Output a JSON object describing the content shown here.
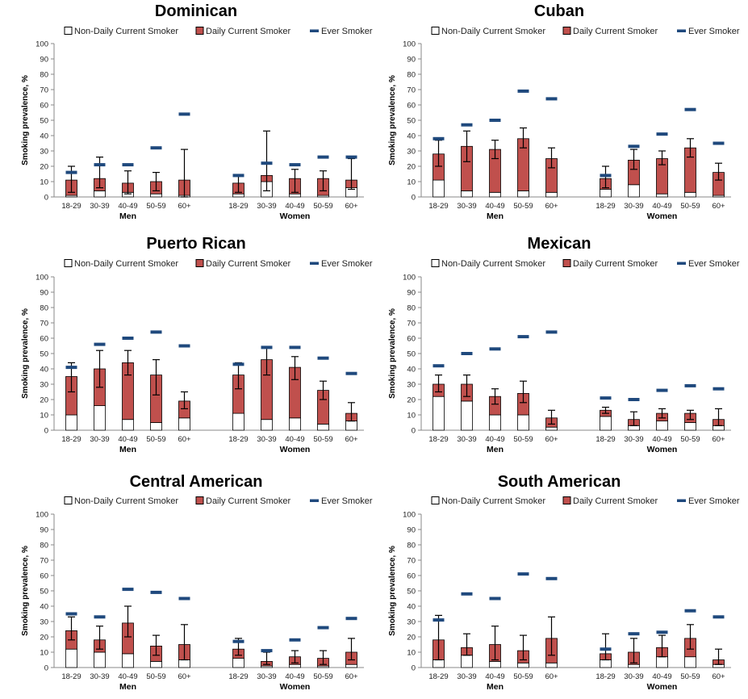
{
  "colors": {
    "daily": "#C0504D",
    "non_daily": "#FFFFFF",
    "ever": "#1F497D",
    "outline": "#000000"
  },
  "legend": {
    "non_daily": "Non-Daily Current Smoker",
    "daily": "Daily Current Smoker",
    "ever": "Ever Smoker"
  },
  "ylabel": "Smoking prevalence, %",
  "yticks": [
    "0",
    "10",
    "20",
    "30",
    "40",
    "50",
    "60",
    "70",
    "80",
    "90",
    "100"
  ],
  "chart_data": [
    {
      "title": "Dominican",
      "type": "bar",
      "stacked": true,
      "ylim": [
        0,
        100
      ],
      "groups": [
        {
          "label": "Men",
          "categories": [
            "18-29",
            "30-39",
            "40-49",
            "50-59",
            "60+"
          ],
          "non_daily": [
            1,
            4,
            3,
            2,
            1
          ],
          "daily": [
            10,
            8,
            6,
            8,
            10
          ],
          "error_upper": [
            20,
            26,
            17,
            16,
            31
          ],
          "error_lower": [
            3,
            6,
            2,
            4,
            0
          ],
          "ever": [
            16,
            21,
            21,
            32,
            54
          ]
        },
        {
          "label": "Women",
          "categories": [
            "18-29",
            "30-39",
            "40-49",
            "50-59",
            "60+"
          ],
          "non_daily": [
            2,
            10,
            2,
            1,
            6
          ],
          "daily": [
            7,
            4,
            10,
            11,
            5
          ],
          "error_upper": [
            14,
            43,
            18,
            17,
            25
          ],
          "error_lower": [
            3,
            4,
            3,
            4,
            5
          ],
          "ever": [
            14,
            22,
            21,
            26,
            26
          ]
        }
      ]
    },
    {
      "title": "Cuban",
      "type": "bar",
      "stacked": true,
      "ylim": [
        0,
        100
      ],
      "groups": [
        {
          "label": "Men",
          "categories": [
            "18-29",
            "30-39",
            "40-49",
            "50-59",
            "60+"
          ],
          "non_daily": [
            11,
            4,
            3,
            4,
            3
          ],
          "daily": [
            17,
            29,
            28,
            34,
            22
          ],
          "error_upper": [
            37,
            43,
            37,
            45,
            32
          ],
          "error_lower": [
            20,
            23,
            25,
            32,
            19
          ],
          "ever": [
            38,
            47,
            50,
            69,
            64
          ]
        },
        {
          "label": "Women",
          "categories": [
            "18-29",
            "30-39",
            "40-49",
            "50-59",
            "60+"
          ],
          "non_daily": [
            5,
            8,
            2,
            3,
            1
          ],
          "daily": [
            7,
            16,
            23,
            29,
            15
          ],
          "error_upper": [
            20,
            31,
            30,
            38,
            22
          ],
          "error_lower": [
            6,
            18,
            21,
            26,
            11
          ],
          "ever": [
            14,
            33,
            41,
            57,
            35
          ]
        }
      ]
    },
    {
      "title": "Puerto Rican",
      "type": "bar",
      "stacked": true,
      "ylim": [
        0,
        100
      ],
      "groups": [
        {
          "label": "Men",
          "categories": [
            "18-29",
            "30-39",
            "40-49",
            "50-59",
            "60+"
          ],
          "non_daily": [
            10,
            16,
            7,
            5,
            8
          ],
          "daily": [
            25,
            24,
            37,
            31,
            11
          ],
          "error_upper": [
            44,
            52,
            52,
            46,
            25
          ],
          "error_lower": [
            25,
            28,
            36,
            23,
            14
          ],
          "ever": [
            41,
            56,
            60,
            64,
            55
          ]
        },
        {
          "label": "Women",
          "categories": [
            "18-29",
            "30-39",
            "40-49",
            "50-59",
            "60+"
          ],
          "non_daily": [
            11,
            7,
            8,
            4,
            6
          ],
          "daily": [
            25,
            39,
            33,
            22,
            5
          ],
          "error_upper": [
            44,
            54,
            48,
            32,
            18
          ],
          "error_lower": [
            27,
            36,
            33,
            20,
            6
          ],
          "ever": [
            43,
            54,
            54,
            47,
            37
          ]
        }
      ]
    },
    {
      "title": "Mexican",
      "type": "bar",
      "stacked": true,
      "ylim": [
        0,
        100
      ],
      "groups": [
        {
          "label": "Men",
          "categories": [
            "18-29",
            "30-39",
            "40-49",
            "50-59",
            "60+"
          ],
          "non_daily": [
            22,
            19,
            10,
            10,
            2
          ],
          "daily": [
            8,
            11,
            12,
            14,
            6
          ],
          "error_upper": [
            36,
            36,
            27,
            32,
            13
          ],
          "error_lower": [
            25,
            22,
            17,
            18,
            4
          ],
          "ever": [
            42,
            50,
            53,
            61,
            64
          ]
        },
        {
          "label": "Women",
          "categories": [
            "18-29",
            "30-39",
            "40-49",
            "50-59",
            "60+"
          ],
          "non_daily": [
            9,
            3,
            6,
            5,
            3
          ],
          "daily": [
            4,
            4,
            5,
            6,
            4
          ],
          "error_upper": [
            15,
            12,
            14,
            13,
            14
          ],
          "error_lower": [
            11,
            3,
            8,
            7,
            3
          ],
          "ever": [
            21,
            20,
            26,
            29,
            27
          ]
        }
      ]
    },
    {
      "title": "Central American",
      "type": "bar",
      "stacked": true,
      "ylim": [
        0,
        100
      ],
      "groups": [
        {
          "label": "Men",
          "categories": [
            "18-29",
            "30-39",
            "40-49",
            "50-59",
            "60+"
          ],
          "non_daily": [
            12,
            10,
            9,
            4,
            5
          ],
          "daily": [
            12,
            8,
            20,
            10,
            10
          ],
          "error_upper": [
            33,
            27,
            40,
            21,
            28
          ],
          "error_lower": [
            18,
            12,
            20,
            8,
            5
          ],
          "ever": [
            35,
            33,
            51,
            49,
            45
          ]
        },
        {
          "label": "Women",
          "categories": [
            "18-29",
            "30-39",
            "40-49",
            "50-59",
            "60+"
          ],
          "non_daily": [
            6,
            1,
            2,
            1,
            2
          ],
          "daily": [
            6,
            3,
            5,
            5,
            8
          ],
          "error_upper": [
            19,
            10,
            11,
            11,
            19
          ],
          "error_lower": [
            8,
            2,
            3,
            2,
            5
          ],
          "ever": [
            17,
            11,
            18,
            26,
            32
          ]
        }
      ]
    },
    {
      "title": "South American",
      "type": "bar",
      "stacked": true,
      "ylim": [
        0,
        100
      ],
      "groups": [
        {
          "label": "Men",
          "categories": [
            "18-29",
            "30-39",
            "40-49",
            "50-59",
            "60+"
          ],
          "non_daily": [
            5,
            8,
            4,
            3,
            3
          ],
          "daily": [
            13,
            5,
            11,
            8,
            16
          ],
          "error_upper": [
            34,
            22,
            27,
            21,
            33
          ],
          "error_lower": [
            5,
            8,
            5,
            5,
            8
          ],
          "ever": [
            31,
            48,
            45,
            61,
            58
          ]
        },
        {
          "label": "Women",
          "categories": [
            "18-29",
            "30-39",
            "40-49",
            "50-59",
            "60+"
          ],
          "non_daily": [
            5,
            2,
            7,
            7,
            2
          ],
          "daily": [
            4,
            8,
            6,
            12,
            3
          ],
          "error_upper": [
            22,
            19,
            21,
            28,
            12
          ],
          "error_lower": [
            5,
            3,
            7,
            12,
            2
          ],
          "ever": [
            12,
            22,
            23,
            37,
            33
          ]
        }
      ]
    }
  ]
}
